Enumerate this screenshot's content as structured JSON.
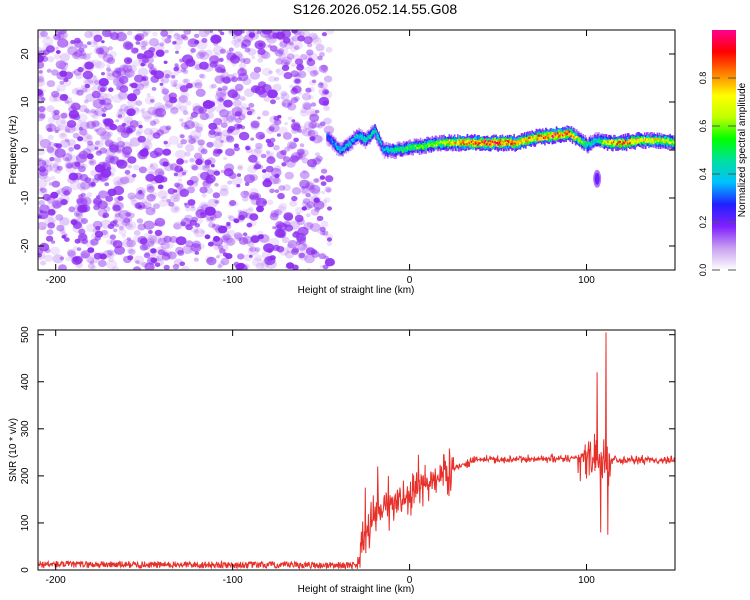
{
  "figure_title": "S126.2026.052.14.55.G08",
  "colors": {
    "snr_line": "#e8302a",
    "spectrogram_noise": "#8c2cf0",
    "frame": "#000000"
  },
  "chart_data": [
    {
      "type": "heatmap",
      "name": "spectrogram",
      "xlabel": "Height of straight line (km)",
      "ylabel": "Frequency (Hz)",
      "xlim": [
        -210,
        150
      ],
      "ylim": [
        -25,
        25
      ],
      "xticks": [
        -200,
        -100,
        0,
        100
      ],
      "yticks": [
        -20,
        -10,
        0,
        10,
        20
      ],
      "noise_region_x": [
        -210,
        -45
      ],
      "ridge": {
        "x": [
          -47,
          -40,
          -35,
          -30,
          -25,
          -20,
          -15,
          -10,
          -5,
          0,
          10,
          20,
          30,
          40,
          50,
          60,
          70,
          80,
          90,
          100,
          105,
          110,
          120,
          130,
          140,
          150
        ],
        "freq_hz": [
          3,
          0,
          1,
          3,
          2,
          4,
          0,
          0,
          0,
          0.5,
          1,
          1.5,
          1.5,
          1.5,
          1.5,
          1.5,
          2.5,
          3,
          3.5,
          1,
          2,
          1.5,
          1.5,
          2,
          2,
          1.5
        ],
        "amplitude": [
          0.3,
          0.4,
          0.4,
          0.4,
          0.45,
          0.45,
          0.4,
          0.45,
          0.5,
          0.55,
          0.6,
          0.7,
          0.85,
          0.9,
          0.9,
          0.85,
          0.8,
          0.9,
          0.85,
          0.5,
          0.4,
          0.7,
          0.85,
          0.75,
          0.7,
          0.65
        ]
      },
      "isolated_feature": {
        "x": 106,
        "freq_hz": -6
      },
      "colorbar": {
        "label": "Normalized spectral amplitude",
        "range": [
          0,
          1
        ],
        "ticks": [
          "0.0",
          "0.2",
          "0.4",
          "0.6",
          "0.8"
        ],
        "colormap": [
          "#ffffff",
          "#c8a0f0",
          "#8020ff",
          "#2020ff",
          "#00c0ff",
          "#00e0a0",
          "#00ff00",
          "#c0ff00",
          "#ffff00",
          "#ff8000",
          "#ff0000",
          "#ff0090"
        ]
      }
    },
    {
      "type": "line",
      "name": "snr",
      "xlabel": "Height of straight line (km)",
      "ylabel": "SNR (10 * v/v)",
      "xlim": [
        -210,
        150
      ],
      "ylim": [
        0,
        510
      ],
      "xticks": [
        -200,
        -100,
        0,
        100
      ],
      "yticks": [
        0,
        100,
        200,
        300,
        400,
        500
      ],
      "series": [
        {
          "name": "SNR",
          "baseline": [
            {
              "x": -210,
              "y": 12
            },
            {
              "x": -30,
              "y": 10
            },
            {
              "x": -27,
              "y": 60
            },
            {
              "x": -20,
              "y": 110
            },
            {
              "x": -10,
              "y": 140
            },
            {
              "x": 0,
              "y": 160
            },
            {
              "x": 10,
              "y": 180
            },
            {
              "x": 20,
              "y": 205
            },
            {
              "x": 30,
              "y": 225
            },
            {
              "x": 40,
              "y": 235
            },
            {
              "x": 60,
              "y": 235
            },
            {
              "x": 80,
              "y": 237
            },
            {
              "x": 95,
              "y": 238
            },
            {
              "x": 100,
              "y": 240
            },
            {
              "x": 110,
              "y": 235
            },
            {
              "x": 150,
              "y": 232
            }
          ],
          "peaks": [
            {
              "x": -28,
              "y": 5
            },
            {
              "x": -25,
              "y": 175
            },
            {
              "x": -18,
              "y": 220
            },
            {
              "x": -12,
              "y": 200
            },
            {
              "x": 5,
              "y": 245
            },
            {
              "x": 106,
              "y": 420
            },
            {
              "x": 108,
              "y": 80
            },
            {
              "x": 111,
              "y": 505
            },
            {
              "x": 112,
              "y": 75
            }
          ]
        }
      ]
    }
  ]
}
